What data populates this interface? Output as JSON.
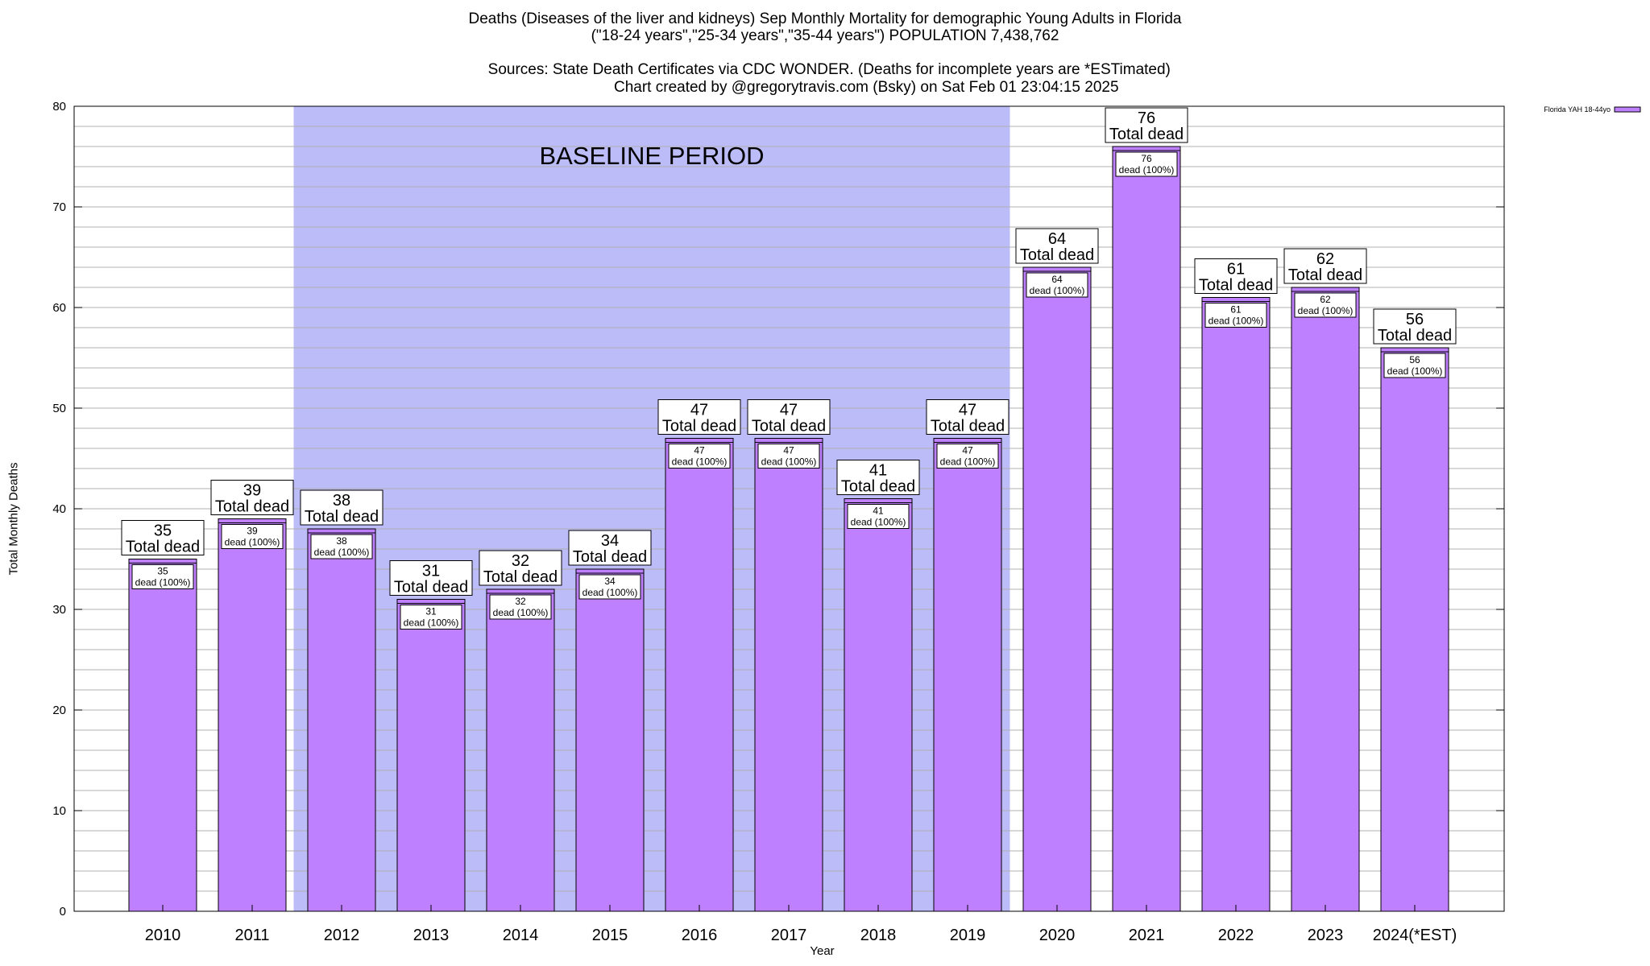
{
  "header": {
    "title_line1": "Deaths (Diseases of the liver and kidneys) Sep Monthly Mortality for demographic Young Adults in Florida",
    "title_line2": "(\"18-24 years\",\"25-34 years\",\"35-44 years\") POPULATION 7,438,762",
    "source_text": "Sources: State Death Certificates via CDC WONDER. (Deaths for incomplete years are *ESTimated)",
    "credit_text": "Chart created by @gregorytravis.com (Bsky) on Sat Feb 01 23:04:15 2025"
  },
  "colors": {
    "bar_fill": "#bf80ff",
    "baseline_fill": "#bcbcf8",
    "grid": "#b0b0b0",
    "axis": "#000000"
  },
  "chart_data": {
    "type": "bar",
    "xlabel": "Year",
    "ylabel": "Total Monthly Deaths",
    "ylim": [
      0,
      80
    ],
    "yticks": [
      0,
      10,
      20,
      30,
      40,
      50,
      60,
      70,
      80
    ],
    "minor_grid_step": 2,
    "grid": true,
    "legend_position": "top-right",
    "categories": [
      "2010",
      "2011",
      "2012",
      "2013",
      "2014",
      "2015",
      "2016",
      "2017",
      "2018",
      "2019",
      "2020",
      "2021",
      "2022",
      "2023",
      "2024(*EST)"
    ],
    "series": [
      {
        "name": "Florida YAH 18-44yo",
        "values": [
          35,
          39,
          38,
          31,
          32,
          34,
          47,
          47,
          41,
          47,
          64,
          76,
          61,
          62,
          56
        ]
      }
    ],
    "total_label_suffix": "Total dead",
    "inner_label_suffix": "dead (100%)",
    "baseline_period": {
      "label": "BASELINE PERIOD",
      "start_category": "2012",
      "end_category": "2019"
    }
  }
}
